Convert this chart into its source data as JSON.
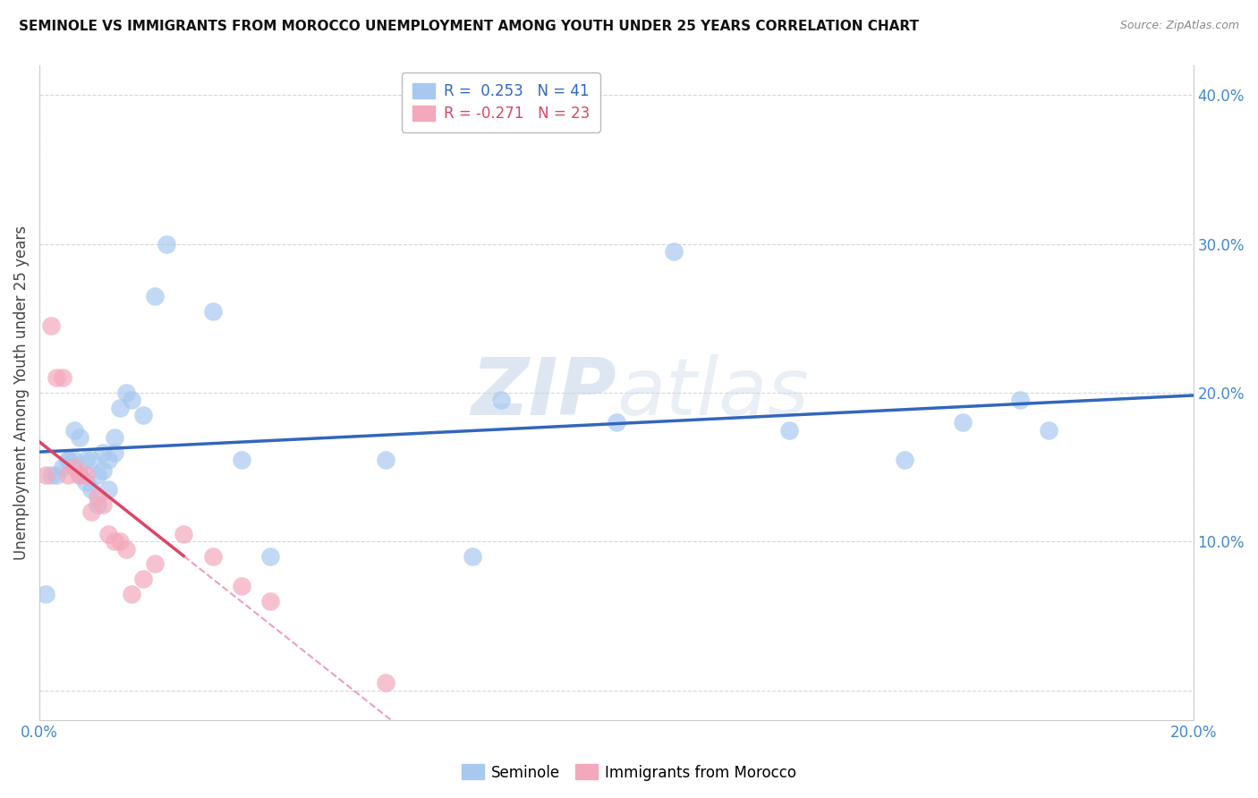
{
  "title": "SEMINOLE VS IMMIGRANTS FROM MOROCCO UNEMPLOYMENT AMONG YOUTH UNDER 25 YEARS CORRELATION CHART",
  "source": "Source: ZipAtlas.com",
  "ylabel": "Unemployment Among Youth under 25 years",
  "y_tick_values": [
    0.0,
    0.1,
    0.2,
    0.3,
    0.4
  ],
  "y_tick_labels": [
    "",
    "10.0%",
    "20.0%",
    "30.0%",
    "40.0%"
  ],
  "xlim": [
    0.0,
    0.2
  ],
  "ylim": [
    -0.02,
    0.42
  ],
  "legend_r1": "R =  0.253   N = 41",
  "legend_r2": "R = -0.271   N = 23",
  "seminole_color": "#A8C8F0",
  "morocco_color": "#F4A8BC",
  "trendline_seminole_color": "#3366BB",
  "trendline_morocco_color": "#DD4466",
  "watermark_zip": "ZIP",
  "watermark_atlas": "atlas",
  "legend_label1": "Seminole",
  "legend_label2": "Immigrants from Morocco",
  "seminole_x": [
    0.001,
    0.002,
    0.003,
    0.004,
    0.005,
    0.005,
    0.006,
    0.006,
    0.007,
    0.007,
    0.008,
    0.008,
    0.009,
    0.009,
    0.01,
    0.01,
    0.011,
    0.011,
    0.012,
    0.012,
    0.013,
    0.013,
    0.014,
    0.015,
    0.016,
    0.018,
    0.02,
    0.022,
    0.03,
    0.035,
    0.04,
    0.06,
    0.075,
    0.08,
    0.1,
    0.11,
    0.13,
    0.15,
    0.16,
    0.17,
    0.175
  ],
  "seminole_y": [
    0.065,
    0.145,
    0.145,
    0.15,
    0.155,
    0.155,
    0.155,
    0.175,
    0.145,
    0.17,
    0.14,
    0.155,
    0.135,
    0.155,
    0.125,
    0.145,
    0.148,
    0.16,
    0.135,
    0.155,
    0.16,
    0.17,
    0.19,
    0.2,
    0.195,
    0.185,
    0.265,
    0.3,
    0.255,
    0.155,
    0.09,
    0.155,
    0.09,
    0.195,
    0.18,
    0.295,
    0.175,
    0.155,
    0.18,
    0.195,
    0.175
  ],
  "morocco_x": [
    0.001,
    0.002,
    0.003,
    0.004,
    0.005,
    0.006,
    0.007,
    0.008,
    0.009,
    0.01,
    0.011,
    0.012,
    0.013,
    0.014,
    0.015,
    0.016,
    0.018,
    0.02,
    0.025,
    0.03,
    0.035,
    0.04,
    0.06
  ],
  "morocco_y": [
    0.145,
    0.245,
    0.21,
    0.21,
    0.145,
    0.15,
    0.145,
    0.145,
    0.12,
    0.13,
    0.125,
    0.105,
    0.1,
    0.1,
    0.095,
    0.065,
    0.075,
    0.085,
    0.105,
    0.09,
    0.07,
    0.06,
    0.005
  ]
}
